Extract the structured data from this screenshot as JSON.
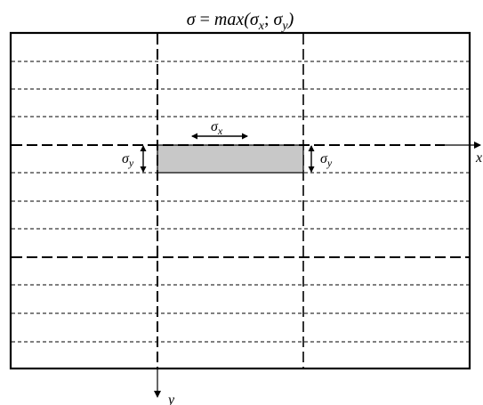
{
  "formula": {
    "sigma": "σ",
    "equals": " = ",
    "func": "max(",
    "sub_x": "x",
    "separator": "; ",
    "sub_y": "y",
    "close": ")"
  },
  "labels": {
    "sigma_x": {
      "symbol": "σ",
      "sub": "x"
    },
    "sigma_y_left": {
      "symbol": "σ",
      "sub": "y"
    },
    "sigma_y_right": {
      "symbol": "σ",
      "sub": "y"
    }
  },
  "axes": {
    "x_label": "x",
    "y_label": "y"
  },
  "colors": {
    "line": "#000000",
    "element_fill": "#c8c8c8",
    "background": "#ffffff"
  }
}
